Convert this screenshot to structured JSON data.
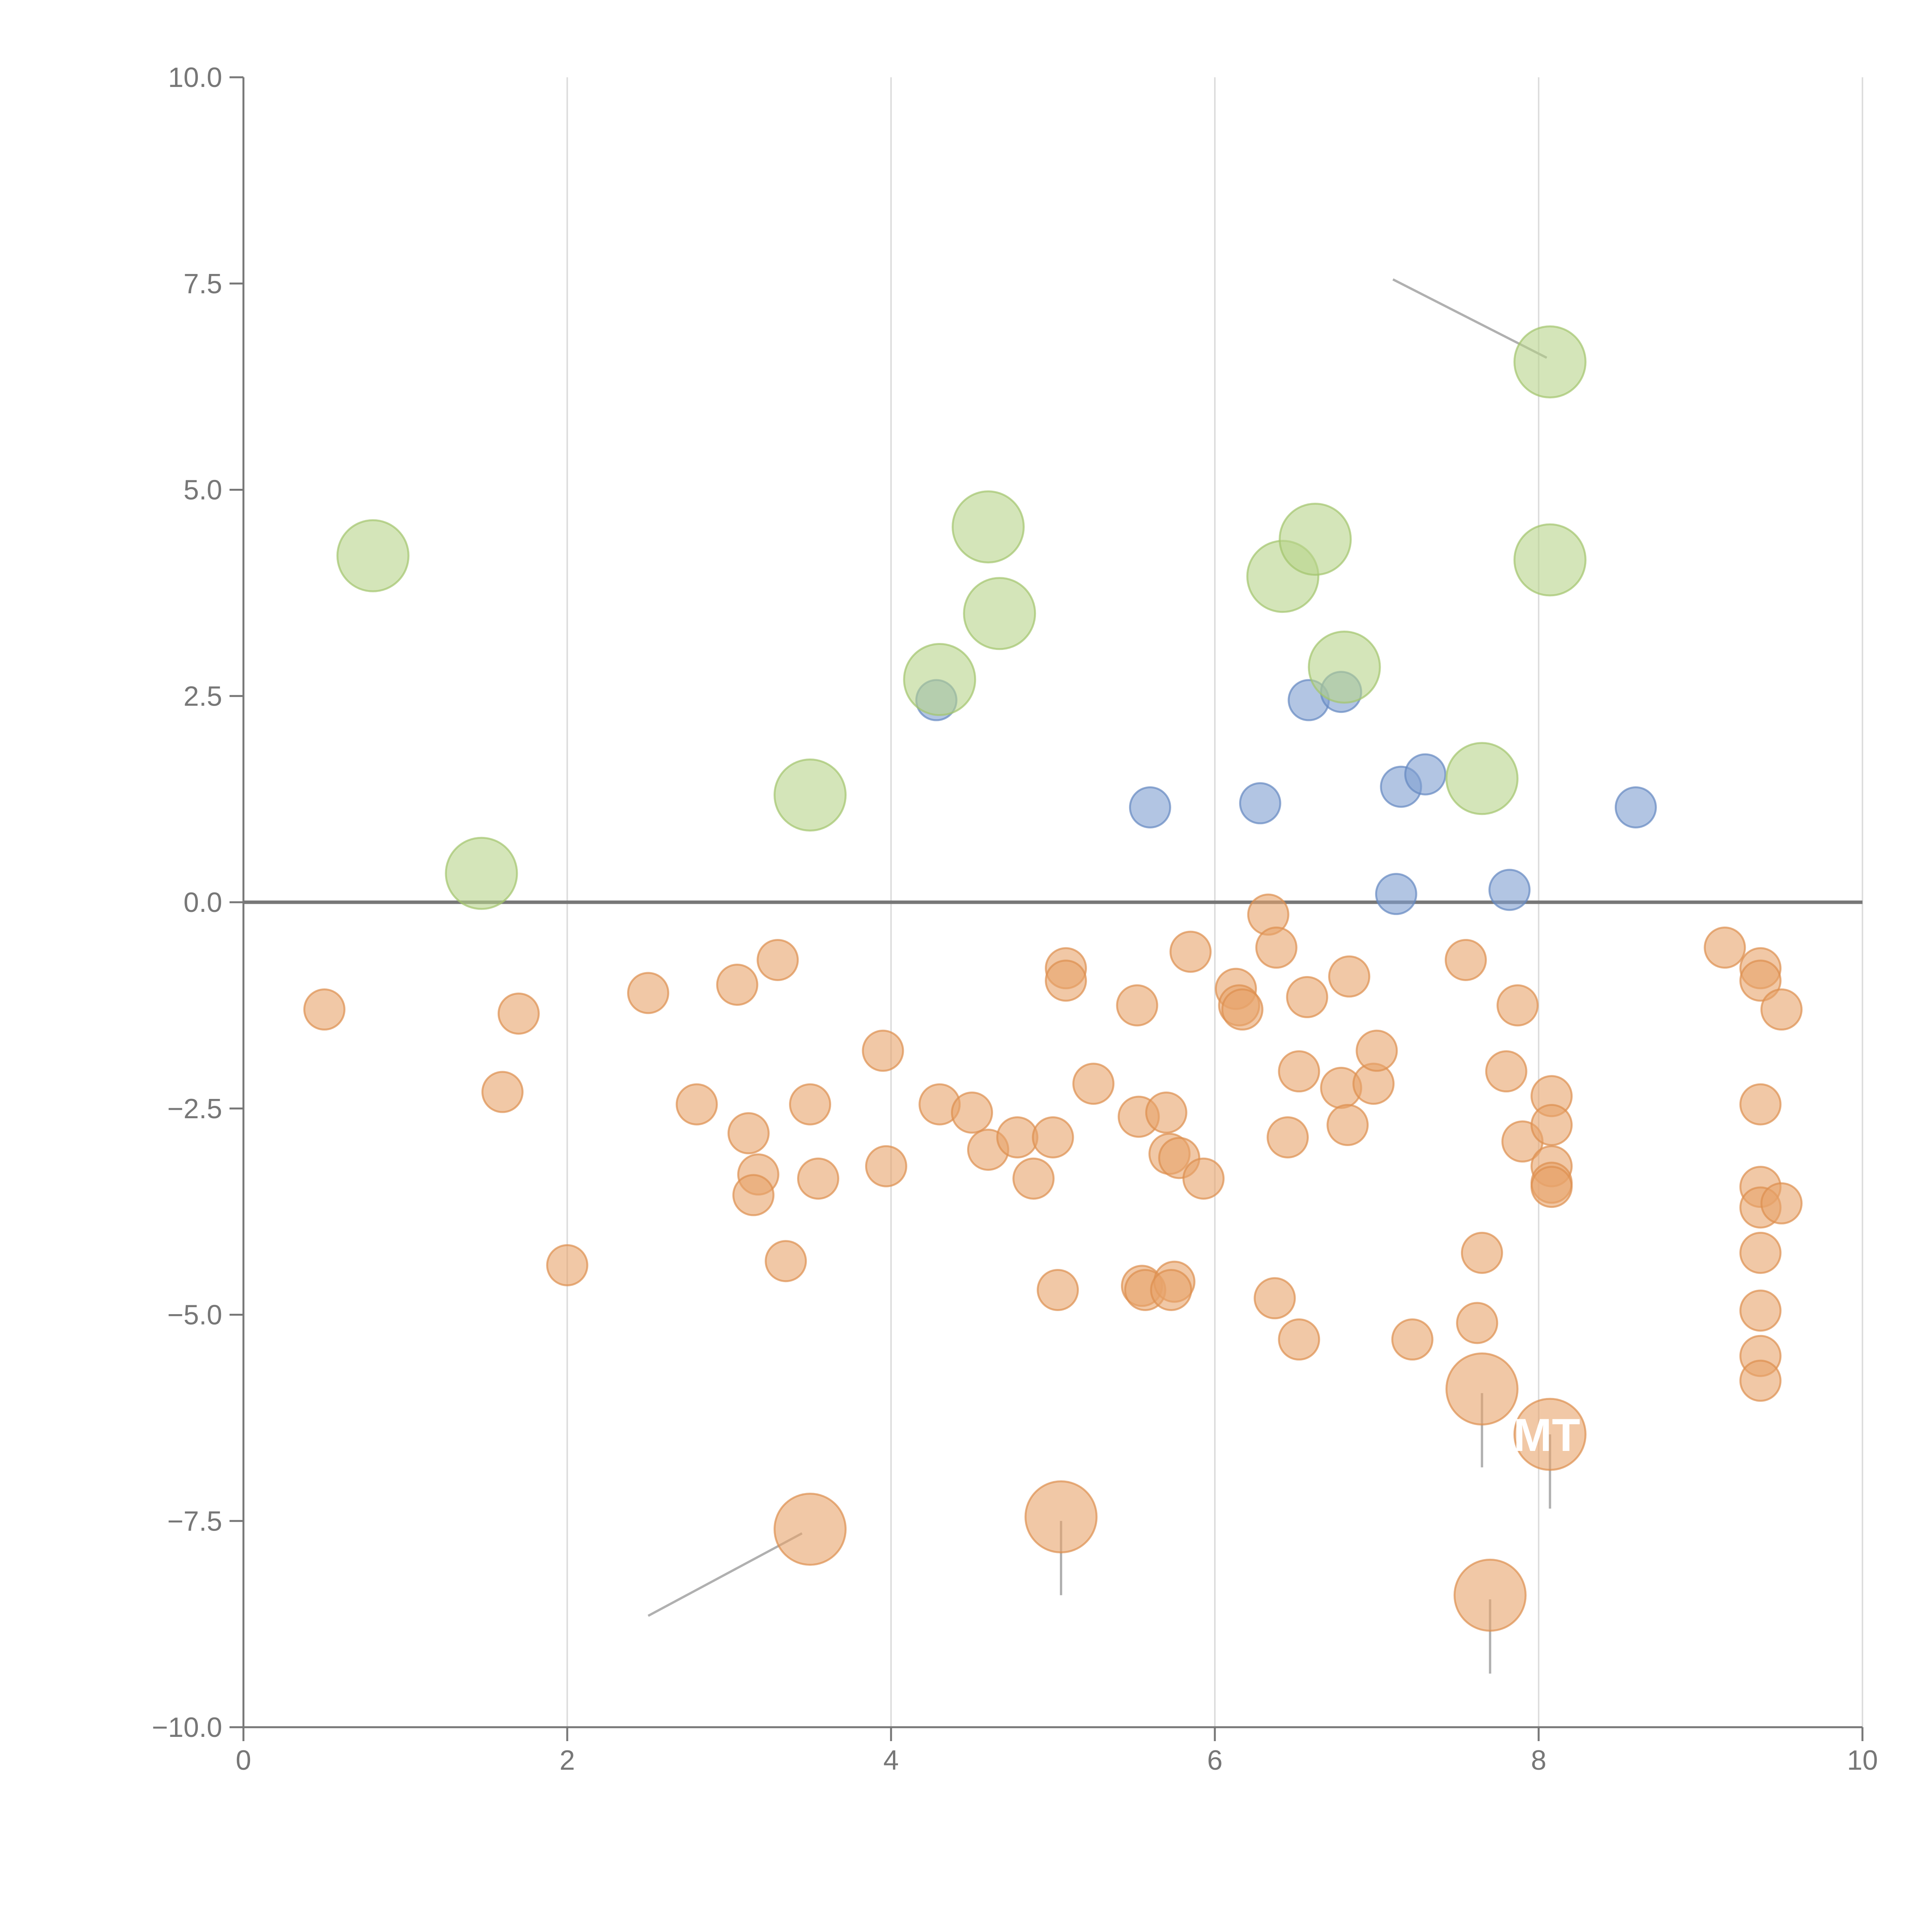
{
  "chart_data": {
    "type": "scatter",
    "title": "",
    "xlabel": "",
    "ylabel": "",
    "xlim": [
      0,
      10
    ],
    "ylim": [
      -10,
      10
    ],
    "x_ticks": [
      0,
      2,
      4,
      6,
      8,
      10
    ],
    "x_tick_labels": [
      "0",
      "2",
      "4",
      "6",
      "8",
      "10"
    ],
    "y_ticks": [
      10,
      7.5,
      5,
      2.5,
      0,
      -2.5,
      -5,
      -7.5,
      -10
    ],
    "y_tick_labels": [
      "10.0",
      "7.5",
      "5.0",
      "2.5",
      "0.0",
      "−2.5",
      "−5.0",
      "−7.5",
      "−10.0"
    ],
    "grid": {
      "vertical_at_x_ticks": true,
      "horizontal": false
    },
    "zero_line": true,
    "colors": {
      "orange": "#e8a46a",
      "orange_stroke": "#dd8f4e",
      "blue": "#7f9fd0",
      "blue_stroke": "#6488c1",
      "green": "#b8d48a",
      "green_stroke": "#a2c46c",
      "grid": "#dddddd",
      "axis": "#777777",
      "leader_gray": "#b0b0b0",
      "leader_white": "#ffffff",
      "label_white": "#ffffff"
    },
    "series": [
      {
        "name": "orange-small",
        "color": "orange",
        "size": "small",
        "points": [
          [
            0.5,
            -1.3
          ],
          [
            1.6,
            -2.3
          ],
          [
            1.7,
            -1.35
          ],
          [
            2.0,
            -4.4
          ],
          [
            2.5,
            -1.1
          ],
          [
            2.8,
            -2.45
          ],
          [
            3.05,
            -1.0
          ],
          [
            3.12,
            -2.8
          ],
          [
            3.18,
            -3.3
          ],
          [
            3.15,
            -3.55
          ],
          [
            3.3,
            -0.7
          ],
          [
            3.35,
            -4.35
          ],
          [
            3.5,
            -2.45
          ],
          [
            3.55,
            -3.35
          ],
          [
            3.95,
            -1.8
          ],
          [
            3.97,
            -3.2
          ],
          [
            4.3,
            -2.45
          ],
          [
            4.5,
            -2.55
          ],
          [
            4.6,
            -3.0
          ],
          [
            4.78,
            -2.85
          ],
          [
            4.88,
            -3.35
          ],
          [
            5.0,
            -2.85
          ],
          [
            5.03,
            -4.7
          ],
          [
            5.08,
            -0.8
          ],
          [
            5.08,
            -0.95
          ],
          [
            5.25,
            -2.2
          ],
          [
            5.52,
            -1.25
          ],
          [
            5.53,
            -2.6
          ],
          [
            5.55,
            -4.65
          ],
          [
            5.57,
            -4.7
          ],
          [
            5.7,
            -2.55
          ],
          [
            5.72,
            -3.05
          ],
          [
            5.78,
            -3.1
          ],
          [
            5.75,
            -4.6
          ],
          [
            5.73,
            -4.7
          ],
          [
            5.85,
            -0.6
          ],
          [
            5.93,
            -3.35
          ],
          [
            6.13,
            -1.05
          ],
          [
            6.15,
            -1.25
          ],
          [
            6.17,
            -1.3
          ],
          [
            6.33,
            -0.15
          ],
          [
            6.37,
            -4.8
          ],
          [
            6.38,
            -0.55
          ],
          [
            6.45,
            -2.85
          ],
          [
            6.52,
            -2.05
          ],
          [
            6.52,
            -5.3
          ],
          [
            6.57,
            -1.15
          ],
          [
            6.78,
            -2.25
          ],
          [
            6.82,
            -2.7
          ],
          [
            6.83,
            -0.9
          ],
          [
            6.98,
            -2.2
          ],
          [
            7.0,
            -1.8
          ],
          [
            7.22,
            -5.3
          ],
          [
            7.55,
            -0.7
          ],
          [
            7.62,
            -5.1
          ],
          [
            7.65,
            -4.25
          ],
          [
            7.8,
            -2.05
          ],
          [
            7.87,
            -1.25
          ],
          [
            7.9,
            -2.9
          ],
          [
            8.08,
            -2.35
          ],
          [
            8.08,
            -2.7
          ],
          [
            8.08,
            -3.2
          ],
          [
            8.08,
            -3.4
          ],
          [
            8.08,
            -3.45
          ],
          [
            9.15,
            -0.55
          ],
          [
            9.37,
            -0.8
          ],
          [
            9.37,
            -0.95
          ],
          [
            9.37,
            -2.45
          ],
          [
            9.37,
            -3.45
          ],
          [
            9.37,
            -3.7
          ],
          [
            9.37,
            -4.25
          ],
          [
            9.37,
            -4.95
          ],
          [
            9.37,
            -5.5
          ],
          [
            9.37,
            -5.8
          ],
          [
            9.5,
            -1.3
          ],
          [
            9.5,
            -3.65
          ]
        ]
      },
      {
        "name": "orange-large",
        "color": "orange",
        "size": "large",
        "points": [
          [
            3.5,
            -7.6
          ],
          [
            5.05,
            -7.45
          ],
          [
            7.65,
            -5.9
          ],
          [
            8.07,
            -6.45
          ],
          [
            7.7,
            -8.4
          ]
        ]
      },
      {
        "name": "blue",
        "color": "blue",
        "size": "small",
        "points": [
          [
            4.28,
            2.45
          ],
          [
            5.6,
            1.15
          ],
          [
            6.28,
            1.2
          ],
          [
            6.58,
            2.45
          ],
          [
            6.78,
            2.55
          ],
          [
            7.12,
            0.1
          ],
          [
            7.15,
            1.4
          ],
          [
            7.3,
            1.55
          ],
          [
            7.82,
            0.15
          ],
          [
            8.6,
            1.15
          ]
        ]
      },
      {
        "name": "green",
        "color": "green",
        "size": "large",
        "points": [
          [
            0.8,
            4.2
          ],
          [
            1.47,
            0.35
          ],
          [
            3.5,
            1.3
          ],
          [
            4.3,
            2.7
          ],
          [
            4.6,
            4.55
          ],
          [
            4.67,
            3.5
          ],
          [
            6.42,
            3.95
          ],
          [
            6.62,
            4.4
          ],
          [
            6.8,
            2.85
          ],
          [
            7.65,
            1.5
          ],
          [
            8.07,
            4.15
          ],
          [
            8.07,
            6.55
          ]
        ]
      }
    ],
    "leader_lines": [
      {
        "from": [
          8.05,
          6.6
        ],
        "to": [
          7.1,
          7.55
        ],
        "color": "leader_gray"
      },
      {
        "from": [
          3.45,
          -7.65
        ],
        "to": [
          2.5,
          -8.65
        ],
        "color": "leader_gray"
      },
      {
        "from": [
          5.05,
          -7.5
        ],
        "to": [
          5.05,
          -8.4
        ],
        "color": "leader_gray"
      },
      {
        "from": [
          7.7,
          -8.45
        ],
        "to": [
          7.7,
          -9.35
        ],
        "color": "leader_gray"
      },
      {
        "from": [
          7.65,
          -5.95
        ],
        "to": [
          7.65,
          -6.85
        ],
        "color": "leader_gray"
      },
      {
        "from": [
          8.07,
          -6.45
        ],
        "to": [
          8.07,
          -7.35
        ],
        "color": "leader_gray"
      },
      {
        "from": [
          4.6,
          4.6
        ],
        "to": [
          4.77,
          4.85
        ],
        "color": "leader_white"
      },
      {
        "from": [
          4.72,
          3.55
        ],
        "to": [
          4.95,
          3.6
        ],
        "color": "leader_white"
      },
      {
        "from": [
          4.35,
          2.75
        ],
        "to": [
          4.6,
          2.8
        ],
        "color": "leader_white"
      },
      {
        "from": [
          6.6,
          4.4
        ],
        "to": [
          6.85,
          4.6
        ],
        "color": "leader_white"
      },
      {
        "from": [
          6.45,
          3.95
        ],
        "to": [
          6.25,
          4.0
        ],
        "color": "leader_white"
      },
      {
        "from": [
          6.85,
          2.85
        ],
        "to": [
          7.1,
          2.8
        ],
        "color": "leader_white"
      },
      {
        "from": [
          8.1,
          4.15
        ],
        "to": [
          8.35,
          4.2
        ],
        "color": "leader_white"
      },
      {
        "from": [
          7.65,
          1.45
        ],
        "to": [
          7.8,
          1.2
        ],
        "color": "leader_white"
      },
      {
        "from": [
          3.5,
          1.25
        ],
        "to": [
          3.6,
          0.9
        ],
        "color": "leader_white"
      }
    ],
    "annotations": [
      {
        "text": "MT",
        "x": 8.05,
        "y": -6.65
      }
    ]
  }
}
